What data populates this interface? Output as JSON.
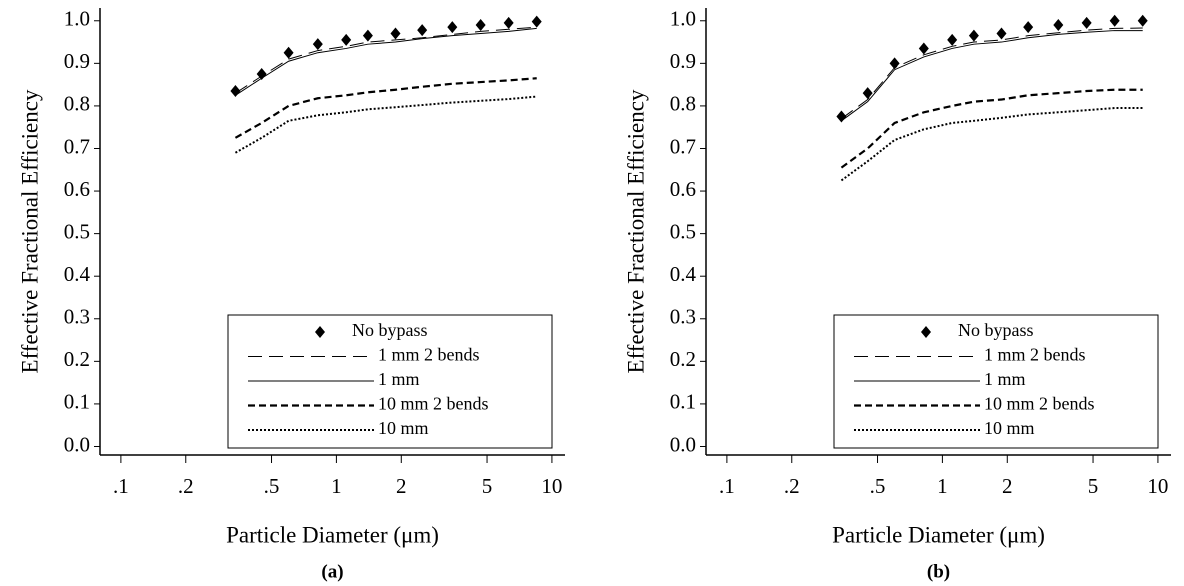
{
  "chart_data": [
    {
      "type": "line",
      "caption": "(a)",
      "xlabel": "Particle Diameter (μm)",
      "ylabel": "Effective Fractional Efficiency",
      "xscale": "log",
      "xlim": [
        0.08,
        11.5
      ],
      "ylim": [
        -0.02,
        1.03
      ],
      "xticks": [
        {
          "value": 0.1,
          "label": ".1"
        },
        {
          "value": 0.2,
          "label": ".2"
        },
        {
          "value": 0.5,
          "label": ".5"
        },
        1,
        2,
        5,
        10
      ],
      "yticks": [
        {
          "value": 0,
          "label": "0.0"
        },
        0.1,
        0.2,
        0.3,
        0.4,
        0.5,
        0.6,
        0.7,
        0.8,
        0.9,
        {
          "value": 1,
          "label": "1.0"
        }
      ],
      "legend": "lower right",
      "x": [
        0.34,
        0.45,
        0.6,
        0.82,
        1.11,
        1.4,
        1.88,
        2.5,
        3.45,
        4.67,
        6.3,
        8.5
      ],
      "series": [
        {
          "name": "No bypass",
          "style": "markers",
          "color": "#000",
          "values": [
            0.835,
            0.875,
            0.925,
            0.945,
            0.955,
            0.965,
            0.97,
            0.978,
            0.985,
            0.99,
            0.995,
            0.998
          ]
        },
        {
          "name": "1 mm 2 bends",
          "style": "longdash",
          "color": "#000",
          "values": [
            0.83,
            0.87,
            0.91,
            0.93,
            0.94,
            0.95,
            0.955,
            0.96,
            0.968,
            0.975,
            0.98,
            0.985
          ]
        },
        {
          "name": "1 mm",
          "style": "solid",
          "color": "#000",
          "values": [
            0.825,
            0.865,
            0.905,
            0.925,
            0.935,
            0.945,
            0.95,
            0.958,
            0.965,
            0.97,
            0.975,
            0.982
          ]
        },
        {
          "name": "10 mm 2 bends",
          "style": "dashed",
          "color": "#000",
          "values": [
            0.725,
            0.76,
            0.8,
            0.818,
            0.825,
            0.832,
            0.838,
            0.845,
            0.852,
            0.856,
            0.86,
            0.865
          ]
        },
        {
          "name": "10 mm",
          "style": "dotted",
          "color": "#000",
          "values": [
            0.69,
            0.725,
            0.765,
            0.778,
            0.785,
            0.792,
            0.797,
            0.802,
            0.808,
            0.812,
            0.816,
            0.822
          ]
        }
      ]
    },
    {
      "type": "line",
      "caption": "(b)",
      "xlabel": "Particle Diameter (μm)",
      "ylabel": "Effective Fractional Efficiency",
      "xscale": "log",
      "xlim": [
        0.08,
        11.5
      ],
      "ylim": [
        -0.02,
        1.03
      ],
      "xticks": [
        {
          "value": 0.1,
          "label": ".1"
        },
        {
          "value": 0.2,
          "label": ".2"
        },
        {
          "value": 0.5,
          "label": ".5"
        },
        1,
        2,
        5,
        10
      ],
      "yticks": [
        {
          "value": 0,
          "label": "0.0"
        },
        0.1,
        0.2,
        0.3,
        0.4,
        0.5,
        0.6,
        0.7,
        0.8,
        0.9,
        {
          "value": 1,
          "label": "1.0"
        }
      ],
      "legend": "lower right",
      "x": [
        0.34,
        0.45,
        0.6,
        0.82,
        1.11,
        1.4,
        1.88,
        2.5,
        3.45,
        4.67,
        6.3,
        8.5
      ],
      "series": [
        {
          "name": "No bypass",
          "style": "markers",
          "color": "#000",
          "values": [
            0.775,
            0.83,
            0.9,
            0.935,
            0.955,
            0.965,
            0.97,
            0.985,
            0.99,
            0.995,
            1.0,
            1.0
          ]
        },
        {
          "name": "1 mm 2 bends",
          "style": "longdash",
          "color": "#000",
          "values": [
            0.77,
            0.815,
            0.89,
            0.92,
            0.94,
            0.95,
            0.955,
            0.965,
            0.972,
            0.978,
            0.982,
            0.983
          ]
        },
        {
          "name": "1 mm",
          "style": "solid",
          "color": "#000",
          "values": [
            0.765,
            0.81,
            0.885,
            0.915,
            0.935,
            0.945,
            0.95,
            0.96,
            0.968,
            0.973,
            0.977,
            0.977
          ]
        },
        {
          "name": "10 mm 2 bends",
          "style": "dashed",
          "color": "#000",
          "values": [
            0.655,
            0.7,
            0.76,
            0.785,
            0.8,
            0.81,
            0.815,
            0.825,
            0.83,
            0.835,
            0.838,
            0.838
          ]
        },
        {
          "name": "10 mm",
          "style": "dotted",
          "color": "#000",
          "values": [
            0.625,
            0.67,
            0.72,
            0.745,
            0.76,
            0.765,
            0.772,
            0.78,
            0.785,
            0.79,
            0.795,
            0.795
          ]
        }
      ]
    }
  ]
}
